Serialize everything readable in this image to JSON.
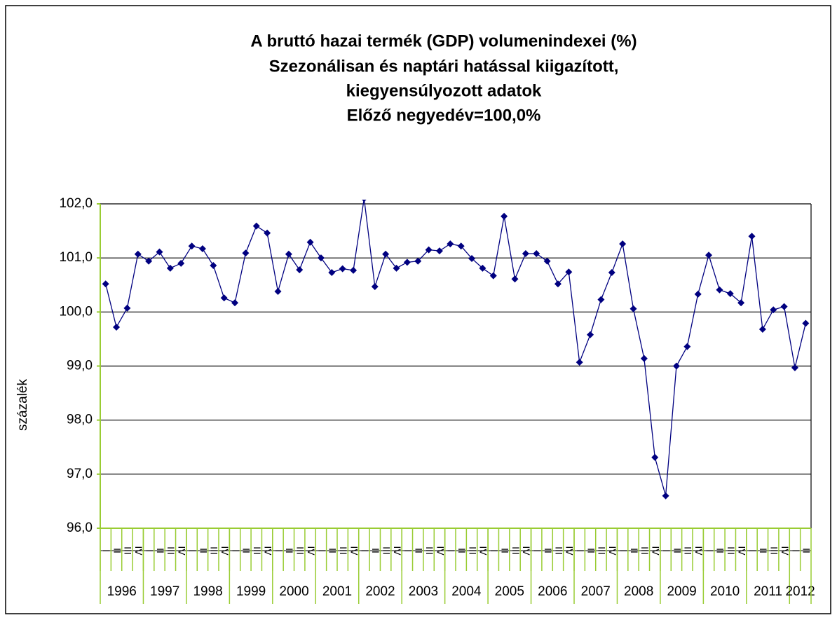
{
  "chart_data": {
    "type": "line",
    "title": [
      "A bruttó hazai termék (GDP) volumenindexei (%)",
      "Szezonálisan és naptári hatással kiigazított,",
      "kiegyensúlyozott adatok",
      "Előző negyedév=100,0%"
    ],
    "y_label": "százalék",
    "categories": [
      "I",
      "II",
      "III",
      "IV",
      "I",
      "II",
      "III",
      "IV",
      "I",
      "II",
      "III",
      "IV",
      "I",
      "II",
      "III",
      "IV",
      "I",
      "II",
      "III",
      "IV",
      "I",
      "II",
      "III",
      "IV",
      "I",
      "II",
      "III",
      "IV",
      "I",
      "II",
      "III",
      "IV",
      "I",
      "II",
      "III",
      "IV",
      "I",
      "II",
      "III",
      "IV",
      "I",
      "II",
      "III",
      "IV",
      "I",
      "II",
      "III",
      "IV",
      "I",
      "II",
      "III",
      "IV",
      "I",
      "II",
      "III",
      "IV",
      "I",
      "II",
      "III",
      "IV",
      "I",
      "II",
      "III",
      "IV",
      "I",
      "II"
    ],
    "year_groups": [
      {
        "label": "1996",
        "count": 4
      },
      {
        "label": "1997",
        "count": 4
      },
      {
        "label": "1998",
        "count": 4
      },
      {
        "label": "1999",
        "count": 4
      },
      {
        "label": "2000",
        "count": 4
      },
      {
        "label": "2001",
        "count": 4
      },
      {
        "label": "2002",
        "count": 4
      },
      {
        "label": "2003",
        "count": 4
      },
      {
        "label": "2004",
        "count": 4
      },
      {
        "label": "2005",
        "count": 4
      },
      {
        "label": "2006",
        "count": 4
      },
      {
        "label": "2007",
        "count": 4
      },
      {
        "label": "2008",
        "count": 4
      },
      {
        "label": "2009",
        "count": 4
      },
      {
        "label": "2010",
        "count": 4
      },
      {
        "label": "2011",
        "count": 4
      },
      {
        "label": "2012",
        "count": 2
      }
    ],
    "series": [
      {
        "color": "#000080",
        "values": [
          100.52,
          99.72,
          100.07,
          101.07,
          100.94,
          101.11,
          100.81,
          100.9,
          101.22,
          101.17,
          100.86,
          100.26,
          100.17,
          101.09,
          101.59,
          101.46,
          100.38,
          101.07,
          100.78,
          101.29,
          101.0,
          100.73,
          100.8,
          100.77,
          102.1,
          100.47,
          101.07,
          100.81,
          100.92,
          100.94,
          101.15,
          101.13,
          101.26,
          101.22,
          100.99,
          100.81,
          100.67,
          101.77,
          100.61,
          101.08,
          101.08,
          100.94,
          100.52,
          100.74,
          99.07,
          99.58,
          100.23,
          100.73,
          101.26,
          100.06,
          99.14,
          97.31,
          96.6,
          99.0,
          99.36,
          100.33,
          101.05,
          100.41,
          100.34,
          100.17,
          101.4,
          99.68,
          100.04,
          100.1,
          98.97,
          99.79
        ]
      }
    ],
    "ylim": [
      96,
      102
    ],
    "yticks": [
      {
        "value": 96,
        "label": "96,0"
      },
      {
        "value": 97,
        "label": "97,0"
      },
      {
        "value": 98,
        "label": "98,0"
      },
      {
        "value": 99,
        "label": "99,0"
      },
      {
        "value": 100,
        "label": "100,0"
      },
      {
        "value": 101,
        "label": "101,0"
      },
      {
        "value": 102,
        "label": "102,0"
      }
    ],
    "grid": true
  }
}
